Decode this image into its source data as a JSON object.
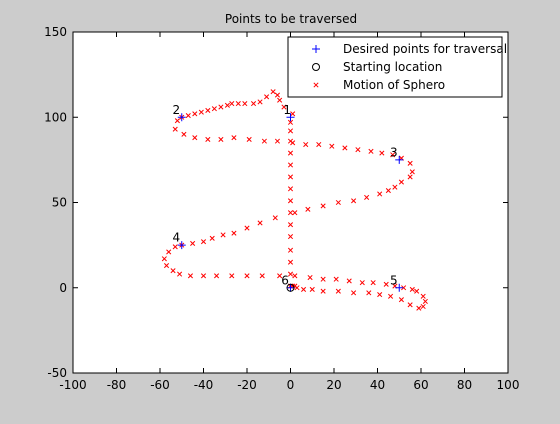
{
  "colors": {
    "figure_bg": "#cccccc",
    "axes_bg": "#ffffff",
    "desired": "#0000ff",
    "start": "#000000",
    "motion": "#ff0000",
    "text": "#000000"
  },
  "chart_data": {
    "type": "scatter",
    "title": "Points to be traversed",
    "xlabel": "",
    "ylabel": "",
    "xlim": [
      -100,
      100
    ],
    "ylim": [
      -50,
      150
    ],
    "xticks": [
      -100,
      -80,
      -60,
      -40,
      -20,
      0,
      20,
      40,
      60,
      80,
      100
    ],
    "yticks": [
      -50,
      0,
      50,
      100,
      150
    ],
    "grid": false,
    "legend_position": "top-right",
    "legend": [
      {
        "label": "Desired points for traversal",
        "marker": "plus",
        "color": "#0000ff"
      },
      {
        "label": "Starting location",
        "marker": "circle",
        "color": "#000000"
      },
      {
        "label": "Motion of Sphero",
        "marker": "x",
        "color": "#ff0000"
      }
    ],
    "series": [
      {
        "name": "Desired points for traversal",
        "marker": "plus",
        "color": "#0000ff",
        "points": [
          [
            0,
            100
          ],
          [
            -50,
            100
          ],
          [
            50,
            75
          ],
          [
            -50,
            25
          ],
          [
            50,
            0
          ],
          [
            0,
            0
          ]
        ]
      },
      {
        "name": "Starting location",
        "marker": "circle",
        "color": "#000000",
        "points": [
          [
            0,
            0
          ]
        ]
      },
      {
        "name": "Motion of Sphero",
        "marker": "x",
        "color": "#ff0000",
        "points": [
          [
            0,
            1
          ],
          [
            0,
            8
          ],
          [
            0,
            15
          ],
          [
            0,
            22
          ],
          [
            0,
            30
          ],
          [
            0,
            37
          ],
          [
            0,
            44
          ],
          [
            0,
            51
          ],
          [
            0,
            58
          ],
          [
            0,
            65
          ],
          [
            0,
            72
          ],
          [
            0,
            79
          ],
          [
            0,
            86
          ],
          [
            0,
            92
          ],
          [
            0,
            97
          ],
          [
            1,
            102
          ],
          [
            -3,
            106
          ],
          [
            -5,
            110
          ],
          [
            -6,
            113
          ],
          [
            -8,
            115
          ],
          [
            -11,
            112
          ],
          [
            -14,
            109
          ],
          [
            -17,
            108
          ],
          [
            -21,
            108
          ],
          [
            -24,
            108
          ],
          [
            -27,
            108
          ],
          [
            -29,
            107
          ],
          [
            -32,
            106
          ],
          [
            -35,
            105
          ],
          [
            -38,
            104
          ],
          [
            -41,
            103
          ],
          [
            -44,
            102
          ],
          [
            -47,
            101
          ],
          [
            -50,
            100
          ],
          [
            -52,
            98
          ],
          [
            -53,
            93
          ],
          [
            -49,
            90
          ],
          [
            -44,
            88
          ],
          [
            -38,
            87
          ],
          [
            -32,
            87
          ],
          [
            -26,
            88
          ],
          [
            -19,
            87
          ],
          [
            -12,
            86
          ],
          [
            -6,
            86
          ],
          [
            1,
            85
          ],
          [
            7,
            84
          ],
          [
            13,
            84
          ],
          [
            19,
            83
          ],
          [
            25,
            82
          ],
          [
            31,
            81
          ],
          [
            37,
            80
          ],
          [
            42,
            79
          ],
          [
            47,
            78
          ],
          [
            51,
            76
          ],
          [
            55,
            73
          ],
          [
            56,
            68
          ],
          [
            55,
            65
          ],
          [
            51,
            62
          ],
          [
            48,
            59
          ],
          [
            45,
            57
          ],
          [
            41,
            55
          ],
          [
            35,
            53
          ],
          [
            29,
            51
          ],
          [
            22,
            50
          ],
          [
            15,
            48
          ],
          [
            8,
            46
          ],
          [
            2,
            44
          ],
          [
            -7,
            41
          ],
          [
            -14,
            38
          ],
          [
            -20,
            35
          ],
          [
            -26,
            32
          ],
          [
            -31,
            31
          ],
          [
            -36,
            29
          ],
          [
            -40,
            27
          ],
          [
            -45,
            26
          ],
          [
            -50,
            25
          ],
          [
            -53,
            24
          ],
          [
            -56,
            21
          ],
          [
            -58,
            17
          ],
          [
            -57,
            13
          ],
          [
            -54,
            10
          ],
          [
            -51,
            8
          ],
          [
            -46,
            7
          ],
          [
            -40,
            7
          ],
          [
            -34,
            7
          ],
          [
            -27,
            7
          ],
          [
            -20,
            7
          ],
          [
            -13,
            7
          ],
          [
            -5,
            7
          ],
          [
            2,
            7
          ],
          [
            9,
            6
          ],
          [
            15,
            5
          ],
          [
            21,
            5
          ],
          [
            27,
            4
          ],
          [
            33,
            3
          ],
          [
            38,
            3
          ],
          [
            44,
            2
          ],
          [
            48,
            1
          ],
          [
            52,
            0
          ],
          [
            56,
            -1
          ],
          [
            58,
            -2
          ],
          [
            61,
            -5
          ],
          [
            62,
            -8
          ],
          [
            61,
            -11
          ],
          [
            59,
            -12
          ],
          [
            55,
            -10
          ],
          [
            51,
            -7
          ],
          [
            46,
            -5
          ],
          [
            41,
            -4
          ],
          [
            36,
            -3
          ],
          [
            29,
            -3
          ],
          [
            22,
            -2
          ],
          [
            15,
            -2
          ],
          [
            10,
            -1
          ],
          [
            6,
            -1
          ],
          [
            3,
            0
          ],
          [
            2,
            1
          ],
          [
            1,
            1
          ]
        ]
      }
    ],
    "annotations": [
      {
        "text": "1",
        "x": -1.5,
        "y": 102
      },
      {
        "text": "2",
        "x": -52.5,
        "y": 102
      },
      {
        "text": "3",
        "x": 47.5,
        "y": 77
      },
      {
        "text": "4",
        "x": -52.5,
        "y": 27
      },
      {
        "text": "5",
        "x": 47.5,
        "y": 2
      },
      {
        "text": "6",
        "x": -2.5,
        "y": 2
      }
    ]
  }
}
